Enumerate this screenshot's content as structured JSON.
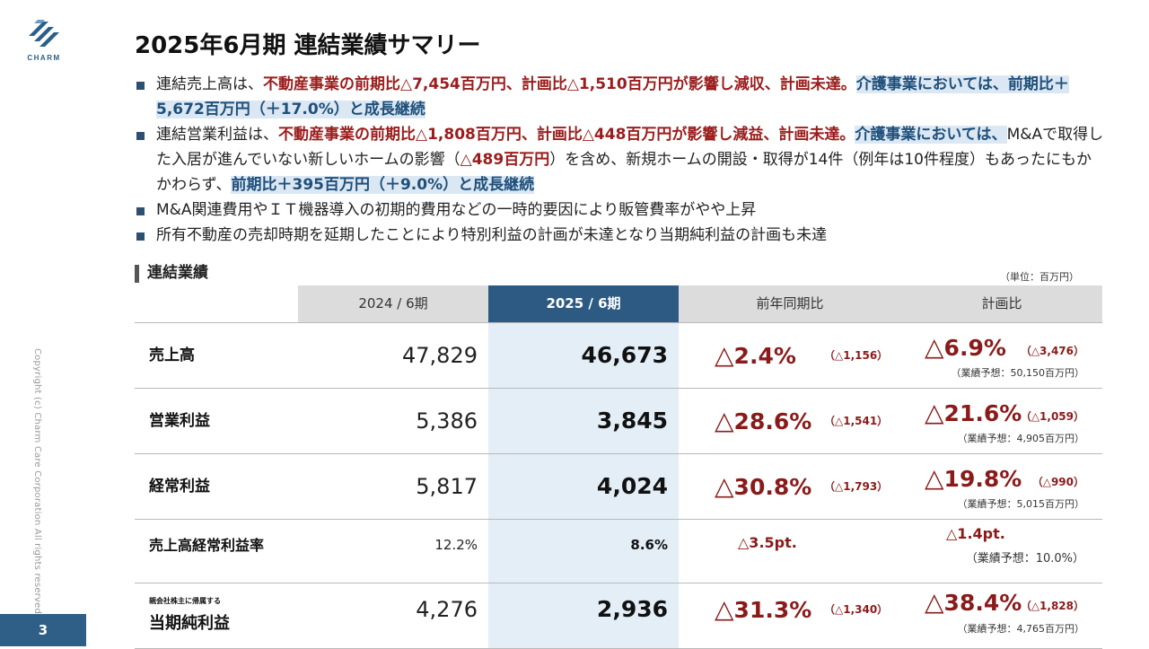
{
  "logo": {
    "icon": "charm-logo-icon",
    "text": "CHARM"
  },
  "title": "2025年6月期 連結業績サマリー",
  "bullets": [
    {
      "segments": [
        {
          "text": "連結売上高は、",
          "style": "plain"
        },
        {
          "text": "不動産事業の前期比△7,454百万円、計画比△1,510百万円が影響し減収、計画未達。",
          "style": "red"
        },
        {
          "text": "介護事業においては、前期比＋5,672百万円（＋17.0%）と成長継続",
          "style": "blue"
        }
      ]
    },
    {
      "segments": [
        {
          "text": "連結営業利益は、",
          "style": "plain"
        },
        {
          "text": "不動産事業の前期比△1,808百万円、計画比△448百万円が影響し減益、計画未達。",
          "style": "red"
        },
        {
          "text": "介護事業においては、",
          "style": "blue"
        },
        {
          "text": "M&Aで取得した入居が進んでいない新しいホームの影響（",
          "style": "plain"
        },
        {
          "text": "△489百万円",
          "style": "red"
        },
        {
          "text": "）を含め、新規ホームの開設・取得が14件（例年は10件程度）もあったにもかかわらず、",
          "style": "plain"
        },
        {
          "text": "前期比＋395百万円（＋9.0%）と成長継続",
          "style": "blue"
        }
      ]
    },
    {
      "segments": [
        {
          "text": "M&A関連費用やＩＴ機器導入の初期的費用などの一時的要因により販管費率がやや上昇",
          "style": "plain"
        }
      ]
    },
    {
      "segments": [
        {
          "text": "所有不動産の売却時期を延期したことにより特別利益の計画が未達となり当期純利益の計画も未達",
          "style": "plain"
        }
      ]
    }
  ],
  "section": {
    "title": "連結業績",
    "unit": "（単位：百万円）"
  },
  "table": {
    "headers": {
      "prev": "2024 / 6期",
      "curr": "2025 / 6期",
      "yoy": "前年同期比",
      "plan": "計画比"
    },
    "rows": [
      {
        "label": "売上高",
        "prev": "47,829",
        "curr": "46,673",
        "yoy_tri": "△",
        "yoy_pct": "2.4%",
        "yoy_amt": "（△1,156）",
        "plan_tri": "△",
        "plan_pct": "6.9%",
        "plan_amt": "（△3,476）",
        "forecast": "（業績予想：50,150百万円）"
      },
      {
        "label": "営業利益",
        "prev": "5,386",
        "curr": "3,845",
        "yoy_tri": "△",
        "yoy_pct": "28.6%",
        "yoy_amt": "（△1,541）",
        "plan_tri": "△",
        "plan_pct": "21.6%",
        "plan_amt": "（△1,059）",
        "forecast": "（業績予想：4,905百万円）"
      },
      {
        "label": "経常利益",
        "prev": "5,817",
        "curr": "4,024",
        "yoy_tri": "△",
        "yoy_pct": "30.8%",
        "yoy_amt": "（△1,793）",
        "plan_tri": "△",
        "plan_pct": "19.8%",
        "plan_amt": "（△990）",
        "forecast": "（業績予想：5,015百万円）"
      }
    ],
    "ratio_row": {
      "label": "売上高経常利益率",
      "prev": "12.2%",
      "curr": "8.6%",
      "yoy": "△3.5pt.",
      "plan": "△1.4pt.",
      "forecast": "（業績予想：10.0%）"
    },
    "net_row": {
      "sublabel": "親会社株主に帰属する",
      "label": "当期純利益",
      "prev": "4,276",
      "curr": "2,936",
      "yoy_tri": "△",
      "yoy_pct": "31.3%",
      "yoy_amt": "（△1,340）",
      "plan_tri": "△",
      "plan_pct": "38.4%",
      "plan_amt": "（△1,828）",
      "forecast": "（業績予想：4,765百万円）"
    }
  },
  "footer": {
    "copyright": "Copyright (c) Charm Care Corporation All rights reserved.",
    "page": "3"
  }
}
